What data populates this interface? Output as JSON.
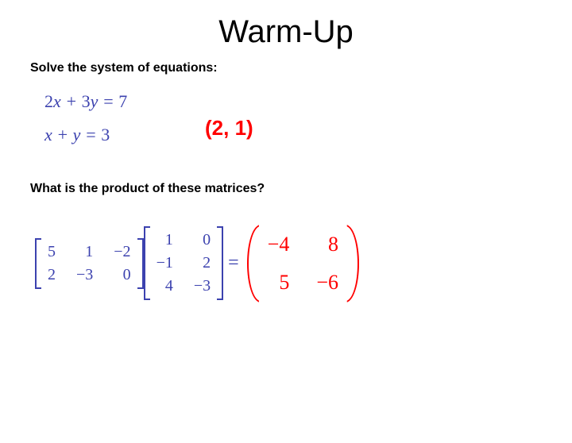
{
  "title": "Warm-Up",
  "prompt1": "Solve the system of equations:",
  "equations": {
    "line1_html": "2x + 3y = 7",
    "line2_html": "x + y = 3",
    "color": "#3c42af",
    "font": "Times New Roman italic",
    "fontsize": 22
  },
  "answer1": "(2, 1)",
  "answer1_color": "#ff0000",
  "prompt2": "What is the product of these matrices?",
  "matrix_a": {
    "rows": 2,
    "cols": 3,
    "cells": [
      "5",
      "1",
      "−2",
      "2",
      "−3",
      "0"
    ],
    "bracket_style": "square",
    "color": "#3c42af",
    "fontsize": 20
  },
  "matrix_b": {
    "rows": 3,
    "cols": 2,
    "cells": [
      "1",
      "0",
      "−1",
      "2",
      "4",
      "−3"
    ],
    "bracket_style": "square",
    "color": "#3c42af",
    "fontsize": 20
  },
  "equals_sign": "=",
  "result_matrix": {
    "rows": 2,
    "cols": 2,
    "cells": [
      "−4",
      "8",
      "5",
      "−6"
    ],
    "bracket_style": "round",
    "color": "#ff0000",
    "fontsize": 26
  },
  "background_color": "#ffffff",
  "title_fontsize": 40,
  "prompt_fontsize": 16
}
